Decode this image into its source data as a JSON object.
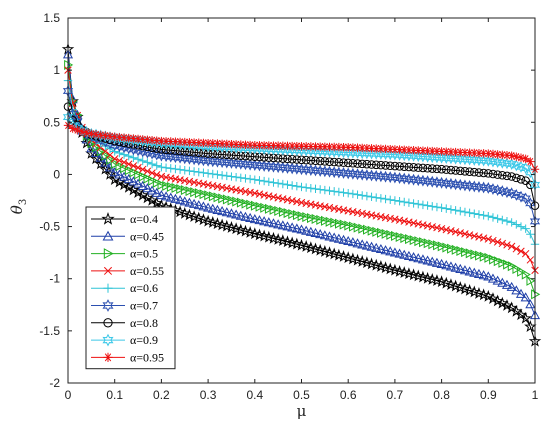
{
  "chart_data": {
    "type": "line",
    "xlabel": "μ",
    "ylabel": "θ",
    "ylabel_subscript": "3",
    "xlim": [
      0,
      1
    ],
    "ylim": [
      -2,
      1.5
    ],
    "x_ticks": [
      0,
      0.1,
      0.2,
      0.3,
      0.4,
      0.5,
      0.6,
      0.7,
      0.8,
      0.9,
      1
    ],
    "x_tick_labels": [
      "0",
      "0.1",
      "0.2",
      "0.3",
      "0.4",
      "0.5",
      "0.6",
      "0.7",
      "0.8",
      "0.9",
      "1"
    ],
    "y_ticks": [
      -2,
      -1.5,
      -1,
      -0.5,
      0,
      0.5,
      1,
      1.5
    ],
    "y_tick_labels": [
      "-2",
      "-1.5",
      "-1",
      "-0.5",
      "0",
      "0.5",
      "1",
      "1.5"
    ],
    "grid": false,
    "legend_position": "bottom-left",
    "x": [
      0.0,
      0.01,
      0.03,
      0.05,
      0.1,
      0.2,
      0.3,
      0.4,
      0.5,
      0.6,
      0.7,
      0.8,
      0.9,
      0.95,
      0.98,
      0.995,
      1.0
    ],
    "series": [
      {
        "name": "α=0.4",
        "color": "#000000",
        "marker": "pentagram",
        "values": [
          1.2,
          0.7,
          0.4,
          0.2,
          -0.05,
          -0.3,
          -0.45,
          -0.57,
          -0.68,
          -0.8,
          -0.92,
          -1.03,
          -1.17,
          -1.28,
          -1.38,
          -1.5,
          -1.6
        ]
      },
      {
        "name": "α=0.45",
        "color": "#1f3fa8",
        "marker": "triangle",
        "values": [
          1.15,
          0.72,
          0.42,
          0.25,
          0.02,
          -0.2,
          -0.32,
          -0.43,
          -0.53,
          -0.64,
          -0.75,
          -0.86,
          -0.98,
          -1.08,
          -1.18,
          -1.28,
          -1.35
        ]
      },
      {
        "name": "α=0.5",
        "color": "#22b022",
        "marker": "triangle-right",
        "values": [
          1.05,
          0.7,
          0.44,
          0.3,
          0.1,
          -0.1,
          -0.2,
          -0.3,
          -0.4,
          -0.49,
          -0.59,
          -0.69,
          -0.8,
          -0.88,
          -0.96,
          -1.05,
          -1.15
        ]
      },
      {
        "name": "α=0.55",
        "color": "#ee1111",
        "marker": "x",
        "values": [
          1.0,
          0.68,
          0.45,
          0.33,
          0.15,
          -0.02,
          -0.1,
          -0.18,
          -0.27,
          -0.35,
          -0.43,
          -0.52,
          -0.62,
          -0.69,
          -0.76,
          -0.85,
          -0.92
        ]
      },
      {
        "name": "α=0.6",
        "color": "#2ec4d6",
        "marker": "plus",
        "values": [
          0.9,
          0.62,
          0.44,
          0.35,
          0.22,
          0.07,
          0.01,
          -0.05,
          -0.12,
          -0.18,
          -0.25,
          -0.32,
          -0.4,
          -0.46,
          -0.52,
          -0.6,
          -0.67
        ]
      },
      {
        "name": "α=0.7",
        "color": "#2b4fb0",
        "marker": "hexagram",
        "values": [
          0.8,
          0.58,
          0.43,
          0.37,
          0.28,
          0.18,
          0.13,
          0.09,
          0.05,
          0.01,
          -0.03,
          -0.08,
          -0.13,
          -0.18,
          -0.23,
          -0.3,
          -0.45
        ]
      },
      {
        "name": "α=0.8",
        "color": "#000000",
        "marker": "circle",
        "values": [
          0.65,
          0.52,
          0.43,
          0.38,
          0.32,
          0.24,
          0.2,
          0.17,
          0.14,
          0.11,
          0.08,
          0.05,
          0.01,
          -0.02,
          -0.06,
          -0.12,
          -0.3
        ]
      },
      {
        "name": "α=0.9",
        "color": "#3cc8e8",
        "marker": "hexagram",
        "values": [
          0.55,
          0.47,
          0.42,
          0.39,
          0.35,
          0.3,
          0.27,
          0.25,
          0.23,
          0.21,
          0.19,
          0.16,
          0.13,
          0.1,
          0.06,
          0.0,
          -0.1
        ]
      },
      {
        "name": "α=0.95",
        "color": "#ee1111",
        "marker": "asterisk",
        "values": [
          0.47,
          0.44,
          0.41,
          0.39,
          0.36,
          0.32,
          0.3,
          0.28,
          0.27,
          0.26,
          0.24,
          0.22,
          0.2,
          0.18,
          0.15,
          0.11,
          0.05
        ]
      }
    ]
  }
}
